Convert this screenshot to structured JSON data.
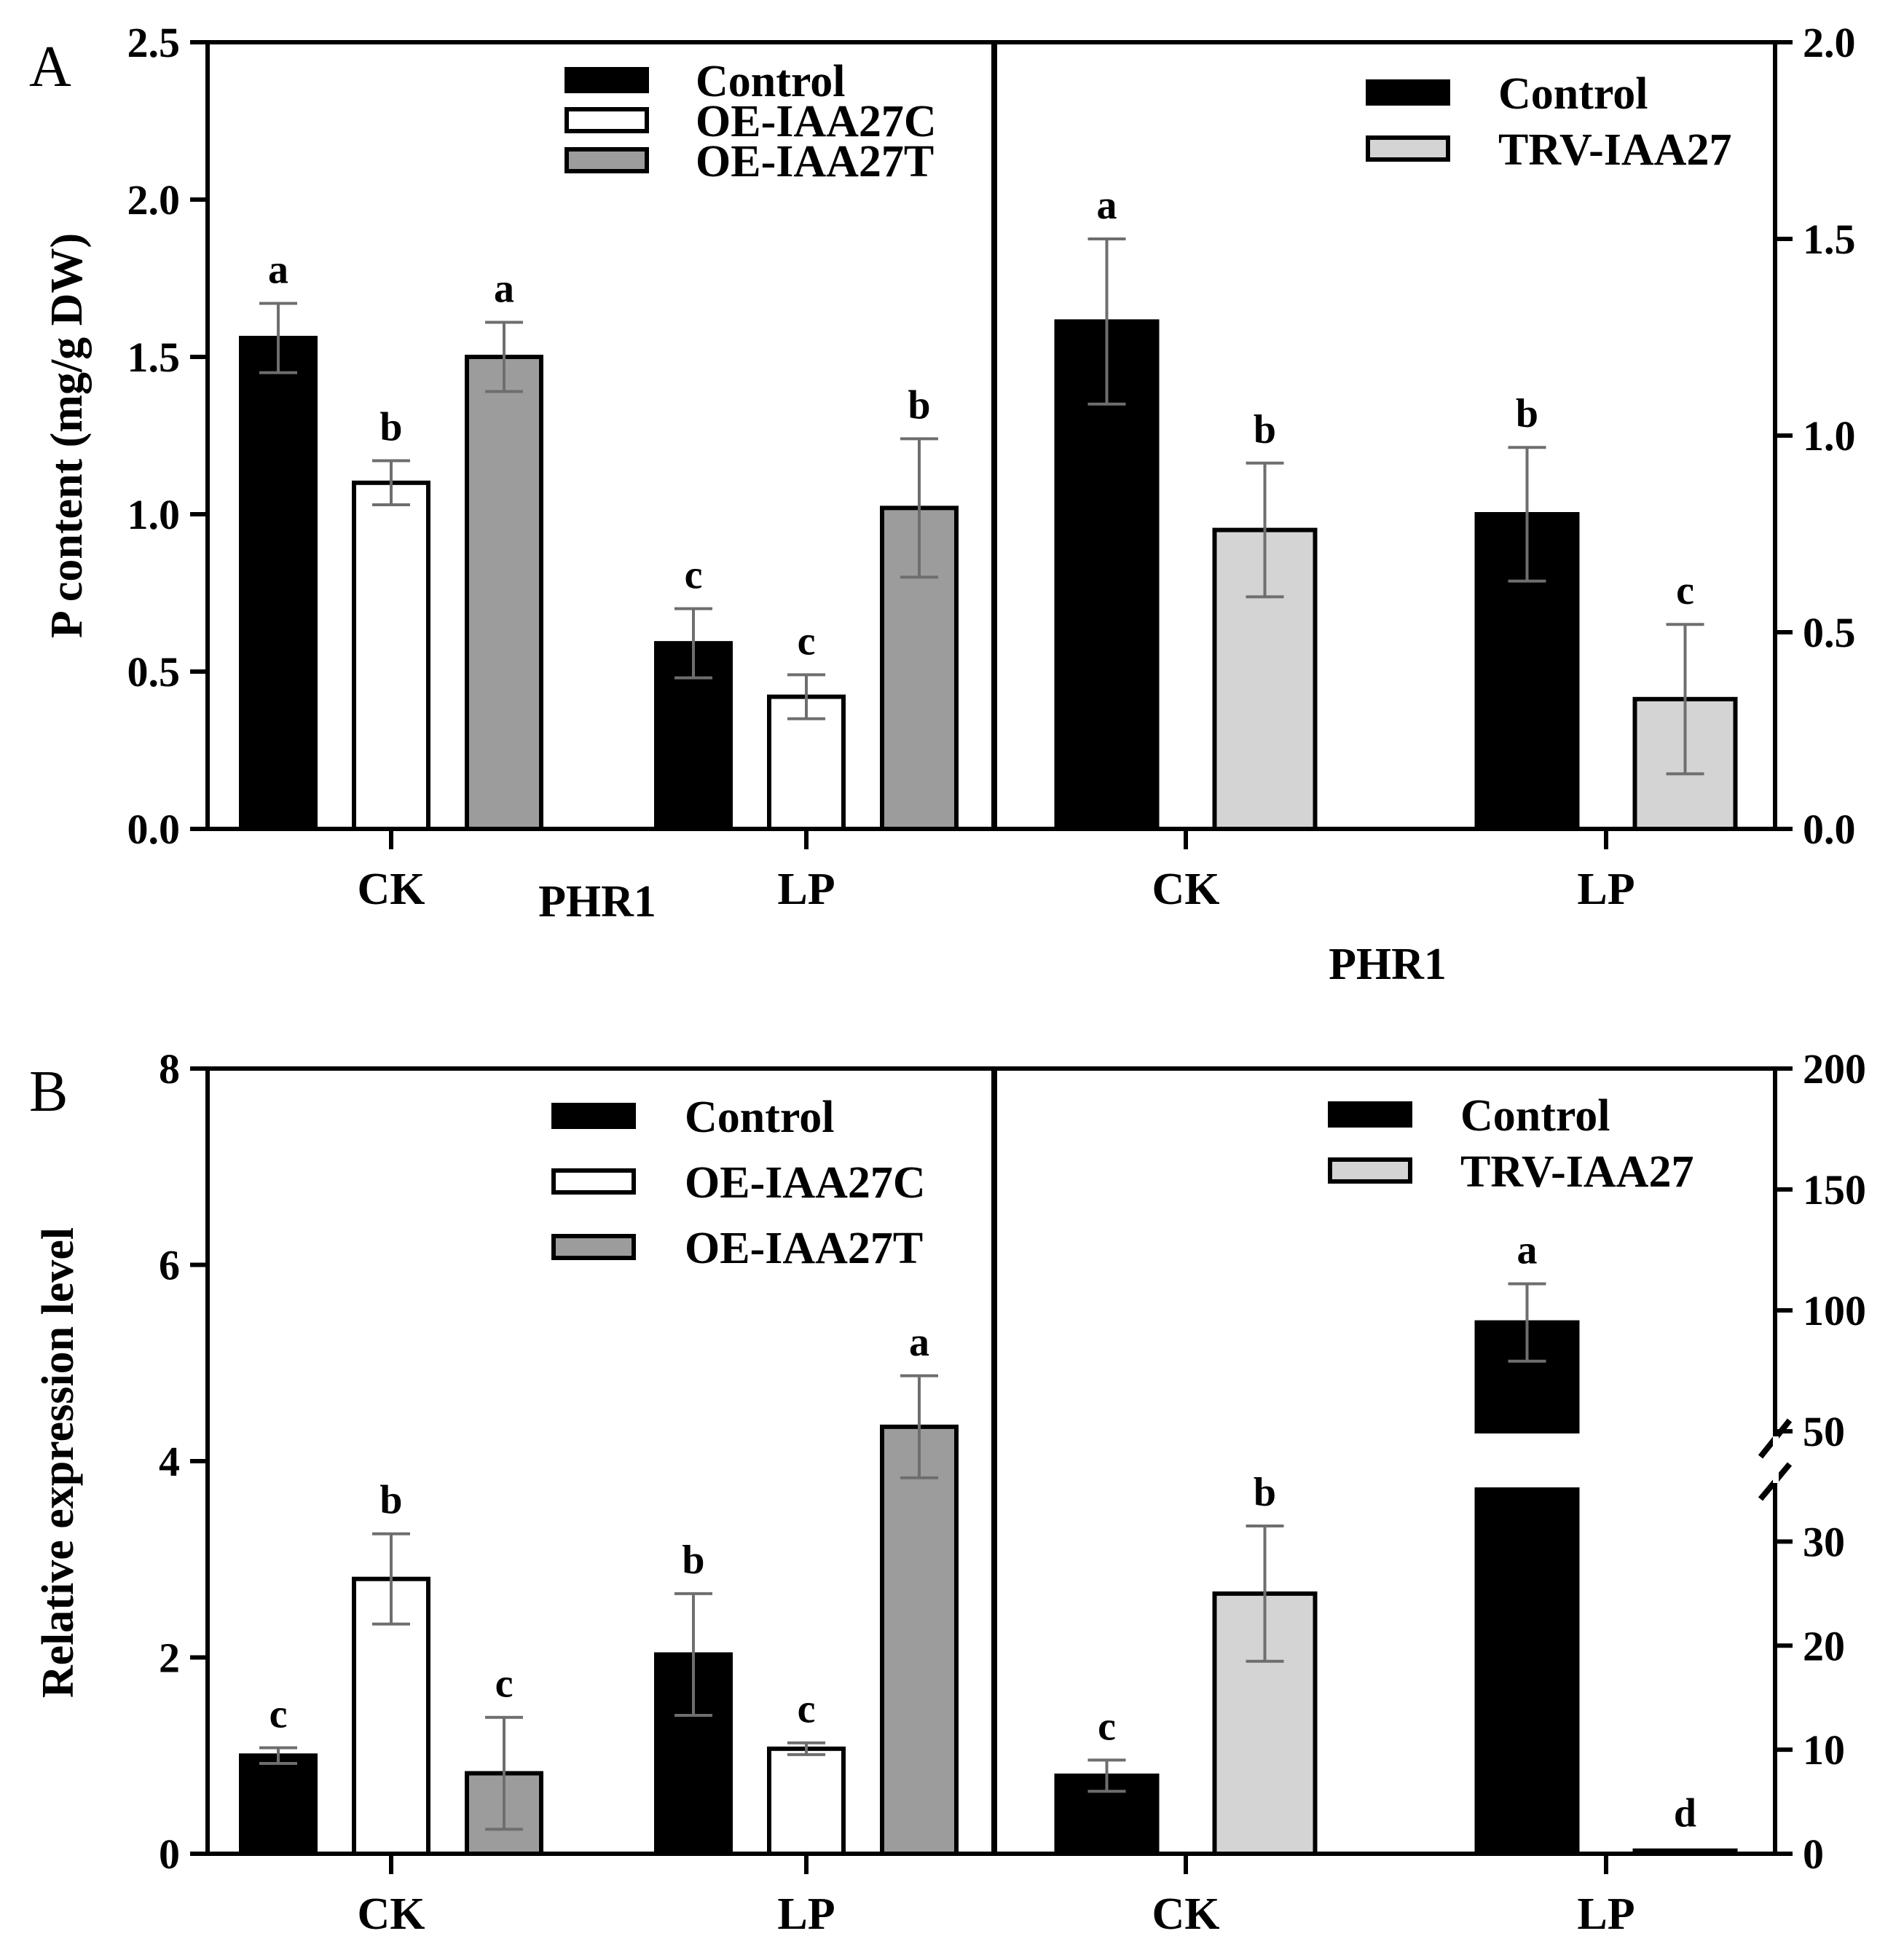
{
  "figure": {
    "panel_a_letter": "A",
    "panel_b_letter": "B"
  },
  "colors": {
    "control": "#000000",
    "oe_c": "#ffffff",
    "oe_t": "#9c9c9c",
    "trv": "#d4d4d4",
    "errorbar": "#6e6e6e"
  },
  "chart_data": [
    {
      "id": "A-left",
      "type": "bar",
      "ylabel": "P content (mg/g DW)",
      "xlabel": "PHR1",
      "categories": [
        "CK",
        "LP"
      ],
      "ylim": [
        0,
        2.5
      ],
      "yticks": [
        0.0,
        0.5,
        1.0,
        1.5,
        2.0,
        2.5
      ],
      "ytick_labels": [
        "0.0",
        "0.5",
        "1.0",
        "1.5",
        "2.0",
        "2.5"
      ],
      "legend_position": "top-right",
      "series": [
        {
          "name": "Control",
          "color_key": "control",
          "values": [
            1.56,
            0.59
          ],
          "errors": [
            0.11,
            0.11
          ],
          "letters": [
            "a",
            "c"
          ]
        },
        {
          "name": "OE-IAA27C",
          "color_key": "oe_c",
          "values": [
            1.1,
            0.42
          ],
          "errors": [
            0.07,
            0.07
          ],
          "letters": [
            "b",
            "c"
          ]
        },
        {
          "name": "OE-IAA27T",
          "color_key": "oe_t",
          "values": [
            1.5,
            1.02
          ],
          "errors": [
            0.11,
            0.22
          ],
          "letters": [
            "a",
            "b"
          ]
        }
      ]
    },
    {
      "id": "A-right",
      "type": "bar",
      "ylabel": "",
      "xlabel": "PHR1",
      "categories": [
        "CK",
        "LP"
      ],
      "ylim": [
        0,
        2.0
      ],
      "yticks": [
        0.0,
        0.5,
        1.0,
        1.5,
        2.0
      ],
      "ytick_labels": [
        "0.0",
        "0.5",
        "1.0",
        "1.5",
        "2.0"
      ],
      "legend_position": "top-right",
      "series": [
        {
          "name": "Control",
          "color_key": "control",
          "values": [
            1.29,
            0.8
          ],
          "errors": [
            0.21,
            0.17
          ],
          "letters": [
            "a",
            "b"
          ]
        },
        {
          "name": "TRV-IAA27",
          "color_key": "trv",
          "values": [
            0.76,
            0.33
          ],
          "errors": [
            0.17,
            0.19
          ],
          "letters": [
            "b",
            "c"
          ]
        }
      ]
    },
    {
      "id": "B-left",
      "type": "bar",
      "ylabel": "Relative expression level",
      "xlabel": "",
      "categories": [
        "CK",
        "LP"
      ],
      "ylim": [
        0,
        8
      ],
      "yticks": [
        0,
        2,
        4,
        6,
        8
      ],
      "ytick_labels": [
        "0",
        "2",
        "4",
        "6",
        "8"
      ],
      "legend_position": "top-right",
      "series": [
        {
          "name": "Control",
          "color_key": "control",
          "values": [
            1.0,
            2.03
          ],
          "errors": [
            0.08,
            0.62
          ],
          "letters": [
            "c",
            "b"
          ]
        },
        {
          "name": "OE-IAA27C",
          "color_key": "oe_c",
          "values": [
            2.8,
            1.07
          ],
          "errors": [
            0.46,
            0.06
          ],
          "letters": [
            "b",
            "c"
          ]
        },
        {
          "name": "OE-IAA27T",
          "color_key": "oe_t",
          "values": [
            0.82,
            4.35
          ],
          "errors": [
            0.57,
            0.52
          ],
          "letters": [
            "c",
            "a"
          ]
        }
      ]
    },
    {
      "id": "B-right",
      "type": "bar",
      "ylabel": "",
      "xlabel": "",
      "categories": [
        "CK",
        "LP"
      ],
      "y_axis_break": [
        35,
        50
      ],
      "ylim": [
        0,
        200
      ],
      "yticks": [
        0,
        10,
        20,
        30,
        50,
        100,
        150,
        200
      ],
      "ytick_labels": [
        "0",
        "10",
        "20",
        "30",
        "50",
        "100",
        "150",
        "200"
      ],
      "legend_position": "top-right",
      "series": [
        {
          "name": "Control",
          "color_key": "control",
          "values": [
            7.5,
            95
          ],
          "errors": [
            1.5,
            16
          ],
          "letters": [
            "c",
            "a"
          ]
        },
        {
          "name": "TRV-IAA27",
          "color_key": "trv",
          "values": [
            25,
            0.3
          ],
          "errors": [
            6.5,
            0
          ],
          "letters": [
            "b",
            "d"
          ]
        }
      ]
    }
  ]
}
